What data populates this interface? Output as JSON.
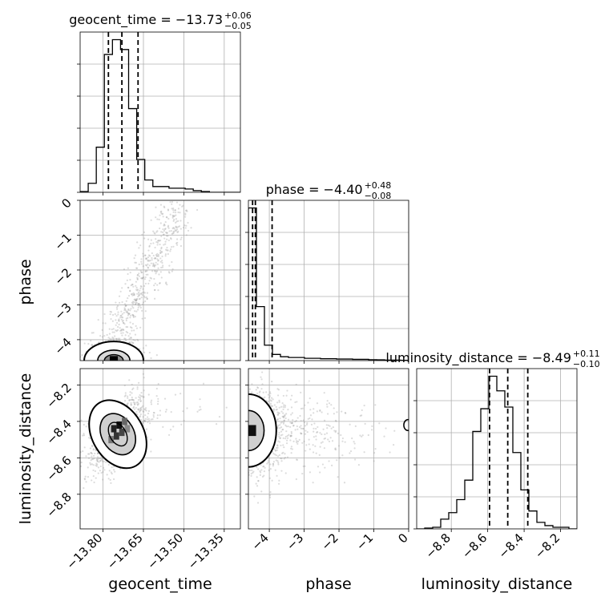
{
  "chart_data": {
    "type": "corner",
    "parameters": [
      "geocent_time",
      "phase",
      "luminosity_distance"
    ],
    "axis_labels": [
      "geocent_time",
      "phase",
      "luminosity_distance"
    ],
    "ranges": {
      "geocent_time": [
        -13.885,
        -13.29
      ],
      "phase": [
        -4.6,
        0.0
      ],
      "luminosity_distance": [
        -8.99,
        -8.11
      ]
    },
    "ticks": {
      "geocent_time": {
        "values": [
          -13.8,
          -13.65,
          -13.5,
          -13.35
        ],
        "labels": [
          "−13.80",
          "−13.65",
          "−13.50",
          "−13.35"
        ]
      },
      "phase": {
        "values": [
          -4,
          -3,
          -2,
          -1,
          0
        ],
        "labels": [
          "−4",
          "−3",
          "−2",
          "−1",
          "0"
        ]
      },
      "luminosity_distance": {
        "values": [
          -8.8,
          -8.6,
          -8.4,
          -8.2
        ],
        "labels": [
          "−8.8",
          "−8.6",
          "−8.4",
          "−8.2"
        ]
      }
    },
    "titles": [
      {
        "param": "geocent_time",
        "main": "geocent_time = −13.73",
        "sup": "+0.06",
        "sub": "−0.05"
      },
      {
        "param": "phase",
        "main": "phase = −4.40",
        "sup": "+0.48",
        "sub": "−0.08"
      },
      {
        "param": "luminosity_distance",
        "main": "luminosity_distance = −8.49",
        "sup": "+0.11",
        "sub": "−0.10"
      }
    ],
    "quantiles": {
      "geocent_time": [
        -13.78,
        -13.73,
        -13.67
      ],
      "phase": [
        -4.48,
        -4.4,
        -3.92
      ],
      "luminosity_distance": [
        -8.59,
        -8.49,
        -8.38
      ]
    },
    "histograms": {
      "geocent_time": {
        "bins": [
          -13.885,
          -13.855,
          -13.825,
          -13.795,
          -13.765,
          -13.735,
          -13.705,
          -13.675,
          -13.645,
          -13.615,
          -13.585,
          -13.555,
          -13.525,
          -13.495,
          -13.465,
          -13.435,
          -13.405,
          -13.375,
          -13.345,
          -13.315,
          -13.29
        ],
        "counts": [
          0.5,
          5.5,
          27.5,
          84,
          93,
          87,
          51,
          20,
          7.5,
          3.5,
          3.5,
          2.5,
          2.5,
          2,
          1,
          0.5,
          0,
          0,
          0,
          0
        ]
      },
      "phase": {
        "bins": [
          -4.6,
          -4.37,
          -4.14,
          -3.91,
          -3.68,
          -3.45,
          -3.22,
          -2.99,
          -2.76,
          -2.53,
          -2.3,
          -2.07,
          -1.84,
          -1.61,
          -1.38,
          -1.15,
          -0.92,
          -0.69,
          -0.46,
          -0.23,
          0.0
        ],
        "counts": [
          99,
          35,
          10,
          4,
          2.5,
          2,
          2,
          1.5,
          1.5,
          1.2,
          1.2,
          1,
          1,
          0.8,
          0.8,
          0.6,
          0.5,
          0.3,
          0.3,
          0.2
        ]
      },
      "luminosity_distance": {
        "bins": [
          -8.99,
          -8.946,
          -8.902,
          -8.858,
          -8.814,
          -8.77,
          -8.726,
          -8.682,
          -8.638,
          -8.594,
          -8.55,
          -8.506,
          -8.462,
          -8.418,
          -8.374,
          -8.33,
          -8.286,
          -8.242,
          -8.198,
          -8.154,
          -8.11
        ],
        "counts": [
          0,
          0.5,
          1,
          6,
          10,
          18,
          30,
          60,
          74,
          94,
          85,
          75,
          47,
          24,
          11,
          4,
          2,
          1,
          1,
          0
        ]
      }
    },
    "scatter_groups": [
      {
        "x": "geocent_time",
        "y": "phase",
        "center": [
          -13.76,
          -4.4
        ],
        "spread": [
          0.05,
          0.15
        ],
        "trend": "correlated",
        "note": "density peak near lower edge; dense cloud rising to upper right"
      },
      {
        "x": "geocent_time",
        "y": "luminosity_distance",
        "center": [
          -13.74,
          -8.47
        ],
        "spread": [
          0.05,
          0.1
        ],
        "trend": "positive correlation"
      },
      {
        "x": "phase",
        "y": "luminosity_distance",
        "center": [
          -4.45,
          -8.45
        ],
        "spread": [
          0.2,
          0.1
        ],
        "trend": "density peak at left edge"
      }
    ],
    "grid": true,
    "colors": {
      "contour": "#000000",
      "points": "#9a9a9a",
      "grid": "#b0b0b0",
      "density_dark": "#000000"
    }
  }
}
